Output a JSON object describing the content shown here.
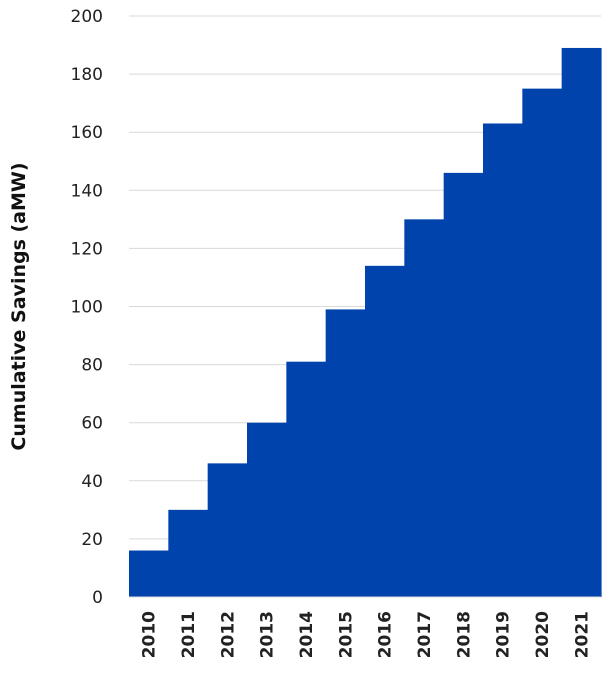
{
  "chart_data": {
    "type": "area",
    "step": true,
    "categories": [
      "2010",
      "2011",
      "2012",
      "2013",
      "2014",
      "2015",
      "2016",
      "2017",
      "2018",
      "2019",
      "2020",
      "2021"
    ],
    "series": [
      {
        "values": [
          16,
          30,
          46,
          60,
          81,
          99,
          114,
          130,
          146,
          163,
          175,
          189
        ]
      }
    ],
    "title": "",
    "xlabel": "",
    "ylabel": "Cumulative Savings (aMW)",
    "ylim": [
      0,
      200
    ],
    "yticks": [
      0,
      20,
      40,
      60,
      80,
      100,
      120,
      140,
      160,
      180,
      200
    ],
    "grid": true,
    "legend": "none",
    "colors": {
      "fill": "#0043AC",
      "grid": "#D9D9D9"
    }
  }
}
